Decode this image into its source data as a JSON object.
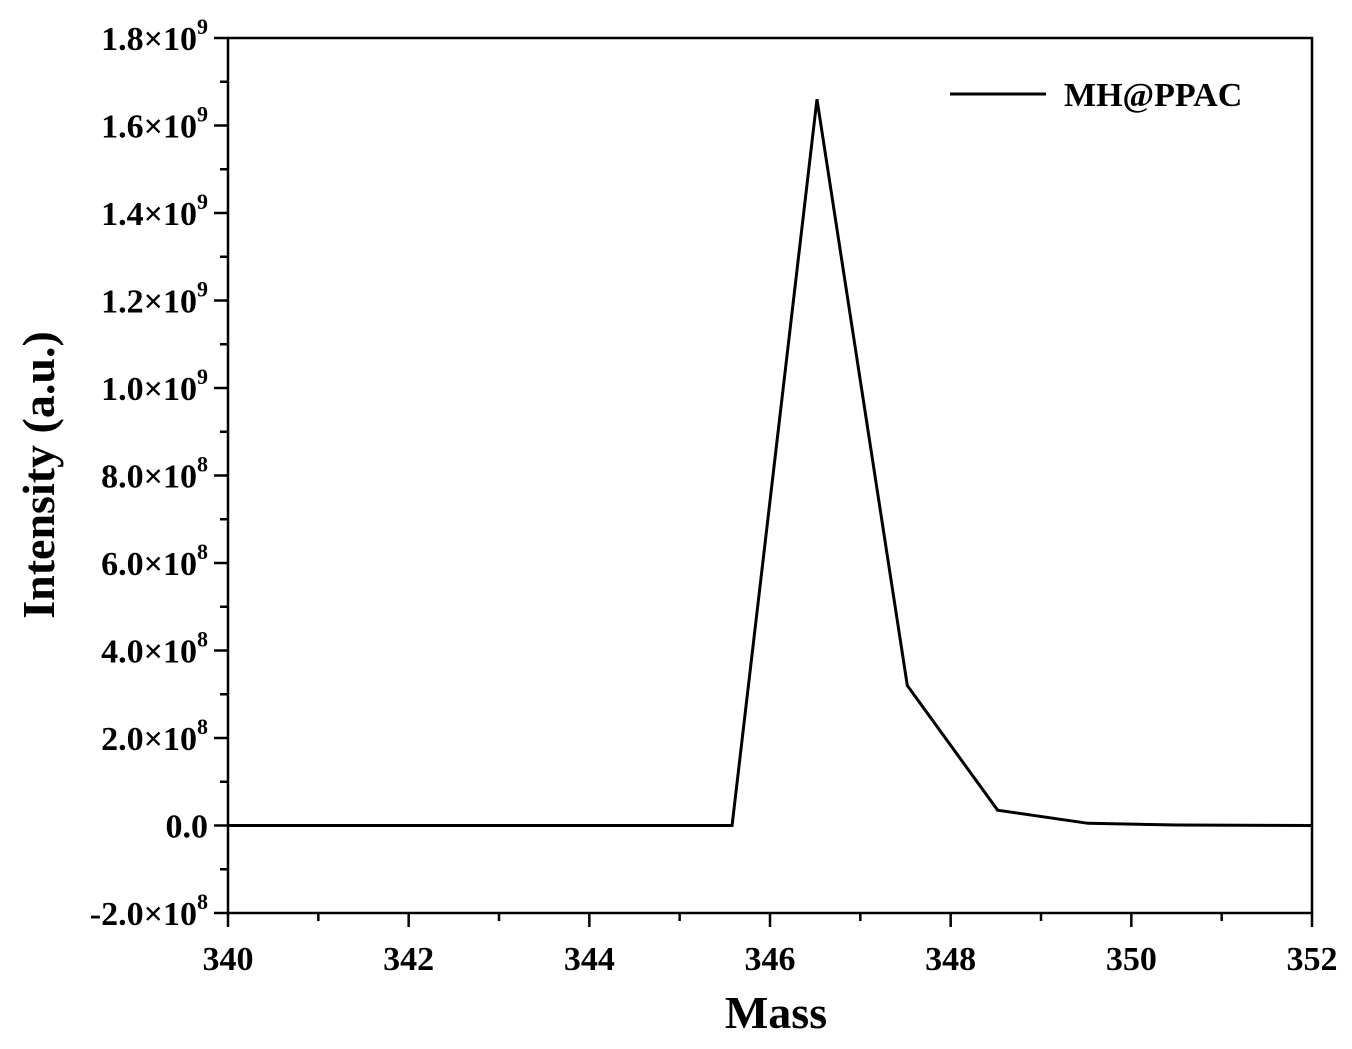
{
  "chart_data": {
    "type": "line",
    "xlabel": "Mass",
    "ylabel": "Intensity (a.u.)",
    "xlim": [
      340,
      352
    ],
    "ylim": [
      -200000000,
      1800000000
    ],
    "x_ticks": [
      340,
      342,
      344,
      346,
      348,
      350,
      352
    ],
    "x_tick_labels": [
      "340",
      "342",
      "344",
      "346",
      "348",
      "350",
      "352"
    ],
    "y_ticks": [
      {
        "value": -200000000,
        "mantissa": "-2.0",
        "exponent": "8"
      },
      {
        "value": 0,
        "mantissa": "0.0",
        "exponent": ""
      },
      {
        "value": 200000000,
        "mantissa": "2.0",
        "exponent": "8"
      },
      {
        "value": 400000000,
        "mantissa": "4.0",
        "exponent": "8"
      },
      {
        "value": 600000000,
        "mantissa": "6.0",
        "exponent": "8"
      },
      {
        "value": 800000000,
        "mantissa": "8.0",
        "exponent": "8"
      },
      {
        "value": 1000000000,
        "mantissa": "1.0",
        "exponent": "9"
      },
      {
        "value": 1200000000,
        "mantissa": "1.2",
        "exponent": "9"
      },
      {
        "value": 1400000000,
        "mantissa": "1.4",
        "exponent": "9"
      },
      {
        "value": 1600000000,
        "mantissa": "1.6",
        "exponent": "9"
      },
      {
        "value": 1800000000,
        "mantissa": "1.8",
        "exponent": "9"
      }
    ],
    "times_symbol": "×10",
    "grid": false,
    "legend_position": "top-right",
    "series": [
      {
        "name": "MH@PPAC",
        "color": "#000000",
        "x": [
          340.0,
          341.5,
          343.5,
          345.0,
          345.58,
          346.52,
          347.52,
          348.52,
          349.52,
          350.5,
          352.0
        ],
        "y": [
          0,
          0,
          0,
          0,
          0,
          1660000000,
          320000000,
          35000000,
          5000000,
          1000000,
          0
        ]
      }
    ]
  }
}
